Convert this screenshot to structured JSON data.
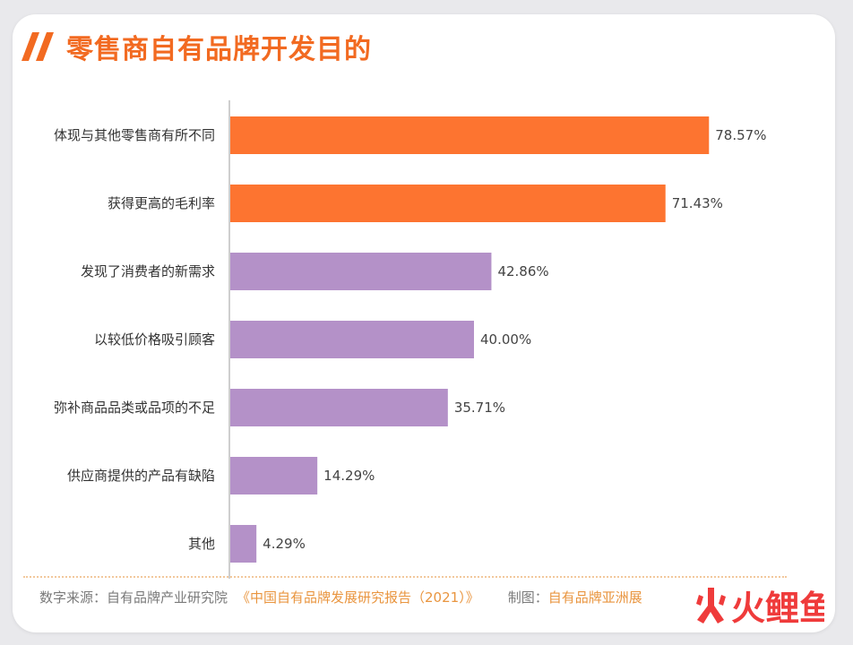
{
  "title": "零售商自有品牌开发目的",
  "colors": {
    "accent": "#f26a21",
    "bar_highlight": "#fd7430",
    "bar_normal": "#b491c8",
    "source_highlight": "#e9953f",
    "watermark": "#ef3b3b"
  },
  "chart_data": {
    "type": "bar",
    "orientation": "horizontal",
    "categories": [
      "体现与其他零售商有所不同",
      "获得更高的毛利率",
      "发现了消费者的新需求",
      "以较低价格吸引顾客",
      "弥补商品品类或品项的不足",
      "供应商提供的产品有缺陷",
      "其他"
    ],
    "values": [
      78.57,
      71.43,
      42.86,
      40.0,
      35.71,
      14.29,
      4.29
    ],
    "value_labels": [
      "78.57%",
      "71.43%",
      "42.86%",
      "40.00%",
      "35.71%",
      "14.29%",
      "4.29%"
    ],
    "highlight_count": 2,
    "xlim": [
      0,
      100
    ],
    "grid": false
  },
  "footer": {
    "source_prefix": "数字来源：自有品牌产业研究院",
    "source_report": "《中国自有品牌发展研究报告（2021）》",
    "maker_prefix": "制图：",
    "maker_name": "自有品牌亚洲展"
  },
  "watermark": {
    "icon": "huxiu-logo-icon",
    "text": "火鲤鱼"
  }
}
